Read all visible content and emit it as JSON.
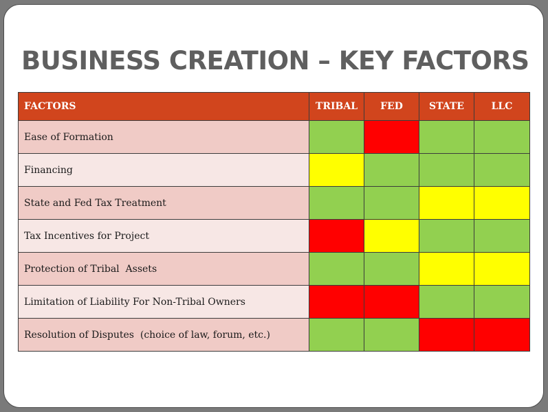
{
  "title": "BUSINESS CREATION – KEY FACTORS",
  "table": {
    "headers": [
      "FACTORS",
      "TRIBAL",
      "FED",
      "STATE",
      "LLC"
    ],
    "rows": [
      {
        "label": "Ease of Formation",
        "ratings": [
          "green",
          "red",
          "green",
          "green"
        ]
      },
      {
        "label": "Financing",
        "ratings": [
          "yellow",
          "green",
          "green",
          "green"
        ]
      },
      {
        "label": "State and Fed Tax Treatment",
        "ratings": [
          "green",
          "green",
          "yellow",
          "yellow"
        ]
      },
      {
        "label": "Tax Incentives for Project",
        "ratings": [
          "red",
          "yellow",
          "green",
          "green"
        ]
      },
      {
        "label": "Protection of Tribal  Assets",
        "ratings": [
          "green",
          "green",
          "yellow",
          "yellow"
        ]
      },
      {
        "label": "Limitation of Liability For Non-Tribal Owners",
        "ratings": [
          "red",
          "red",
          "green",
          "green"
        ]
      },
      {
        "label": "Resolution of Disputes  (choice of law, forum, etc.)",
        "ratings": [
          "green",
          "green",
          "red",
          "red"
        ]
      }
    ]
  },
  "colors": {
    "header_bg": "#d1451d",
    "green": "#92d050",
    "red": "#ff0000",
    "yellow": "#ffff00",
    "row_odd": "#f0cbc6",
    "row_even": "#f7e7e5"
  }
}
